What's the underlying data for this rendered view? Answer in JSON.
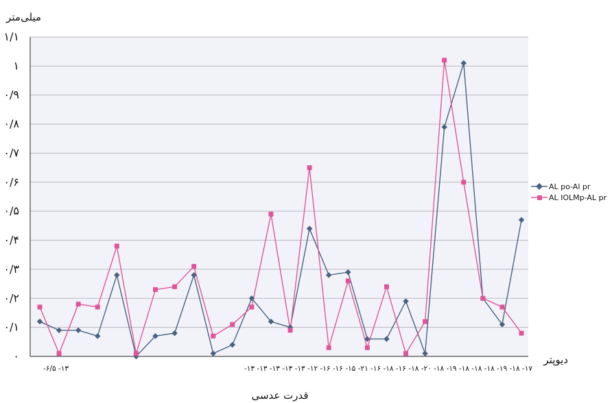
{
  "chart_data": {
    "type": "line",
    "ylabel": "میلی‌متر",
    "xunit": "دیوپتر",
    "xlabel": "قدرت عدسی",
    "ylim": [
      0,
      1.1
    ],
    "y_tick_labels": [
      "۰",
      "۰/۱",
      "۰/۲",
      "۰/۳",
      "۰/۴",
      "۰/۵",
      "۰/۶",
      "۰/۷",
      "۰/۸",
      "۰/۹",
      "۱",
      "۱/۱"
    ],
    "x_tick_text": "-۶/۵ -۱۳",
    "x_tick_text_2": "-۱۳ -۱۳ -۱۳ -۱۳ -۱۳ -۱۲ -۱۶ -۱۶ -۱۵ -۲۱ -۱۶ -۱۸ -۱۶ -۱۸ -۲۰ -۱۸ -۱۹ -۱۸ -۱۸ -۱۸ -۱۹ -۱۸ -۱۷",
    "grid": true,
    "legend_position": "right",
    "colors": {
      "series1": "#4a6280",
      "series2": "#e0559a",
      "gridline": "#b9b9bf",
      "plot_bg": "#f2f3f8"
    },
    "series": [
      {
        "name": "AL po-Al pr",
        "marker": "diamond",
        "values": [
          0.12,
          0.09,
          0.09,
          0.07,
          0.28,
          0.0,
          0.07,
          0.08,
          0.28,
          0.01,
          0.04,
          0.2,
          0.12,
          0.1,
          0.44,
          0.28,
          0.29,
          0.06,
          0.06,
          0.19,
          0.01,
          0.79,
          1.01,
          0.2,
          0.11,
          0.47
        ]
      },
      {
        "name": "AL IOLMp-AL pr",
        "marker": "square",
        "values": [
          0.17,
          0.01,
          0.18,
          0.17,
          0.38,
          0.01,
          0.23,
          0.24,
          0.31,
          0.07,
          0.11,
          0.17,
          0.49,
          0.09,
          0.65,
          0.03,
          0.26,
          0.03,
          0.24,
          0.01,
          0.12,
          1.02,
          0.6,
          0.2,
          0.17,
          0.08
        ]
      }
    ]
  }
}
